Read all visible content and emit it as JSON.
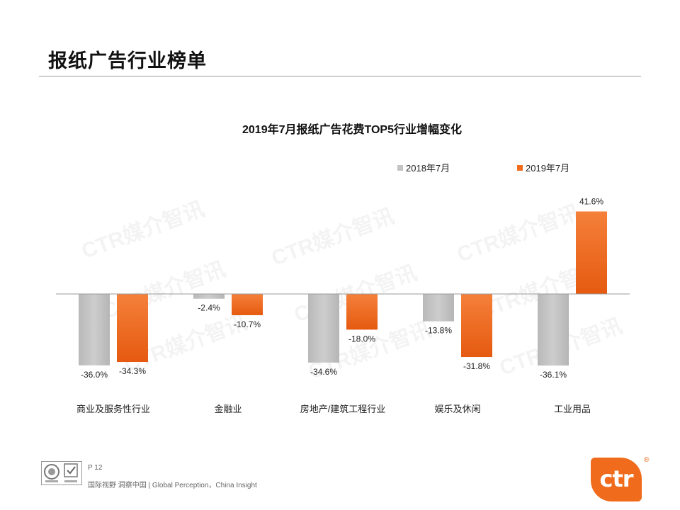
{
  "page": {
    "title": "报纸广告行业榜单",
    "page_number": "P 12",
    "tagline": "国际视野 洞察中国 | Global Perception，China Insight",
    "brand_text": "ctr",
    "brand_reg": "®",
    "watermark": "CTR媒介智讯",
    "accent_color": "#f06b1c"
  },
  "chart_data": {
    "type": "bar",
    "title": "2019年7月报纸广告花费TOP5行业增幅变化",
    "categories": [
      "商业及服务性行业",
      "金融业",
      "房地产/建筑工程行业",
      "娱乐及休闲",
      "工业用品"
    ],
    "series": [
      {
        "name": "2018年7月",
        "color": "#c3c3c3",
        "values": [
          -36.0,
          -2.4,
          -34.6,
          -13.8,
          -36.1
        ],
        "labels": [
          "-36.0%",
          "-2.4%",
          "-34.6%",
          "-13.8%",
          "-36.1%"
        ]
      },
      {
        "name": "2019年7月",
        "color": "#f06b1c",
        "values": [
          -34.3,
          -10.7,
          -18.0,
          -31.8,
          41.6
        ],
        "labels": [
          "-34.3%",
          "-10.7%",
          "-18.0%",
          "-31.8%",
          "41.6%"
        ]
      }
    ],
    "legend_position": "top-right",
    "grid": false,
    "ylim": [
      -40,
      45
    ]
  }
}
